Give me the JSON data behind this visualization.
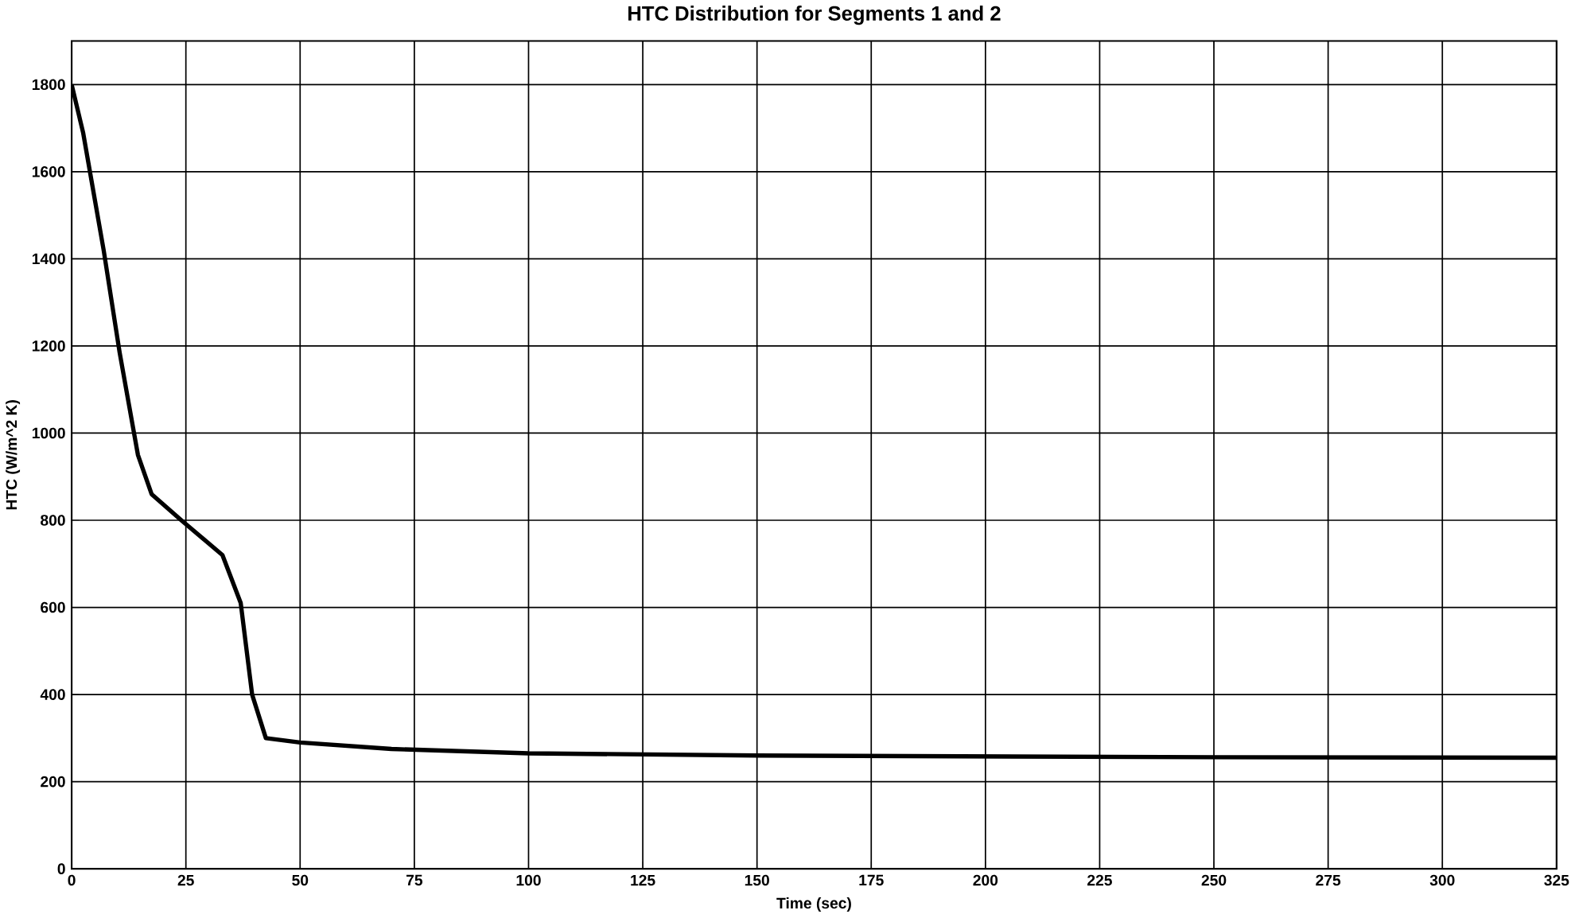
{
  "chart_data": {
    "type": "line",
    "title": "HTC Distribution for Segments 1 and 2",
    "xlabel": "Time (sec)",
    "ylabel": "HTC (W/m^2 K)",
    "x": [
      0,
      2.5,
      7,
      10.5,
      14.5,
      17.5,
      24,
      33,
      37,
      39.5,
      42.5,
      50,
      70,
      100,
      150,
      200,
      250,
      325
    ],
    "series": [
      {
        "color": "#000000",
        "values": [
          1800,
          1690,
          1420,
          1185,
          950,
          860,
          800,
          720,
          610,
          400,
          300,
          290,
          275,
          265,
          260,
          258,
          256,
          255
        ]
      }
    ],
    "xlim": [
      0,
      325
    ],
    "ylim": [
      0,
      1900
    ],
    "xticks": [
      0,
      25,
      50,
      75,
      100,
      125,
      150,
      175,
      200,
      225,
      250,
      275,
      300,
      325
    ],
    "yticks": [
      0,
      200,
      400,
      600,
      800,
      1000,
      1200,
      1400,
      1600,
      1800
    ],
    "grid": true,
    "marker": "none",
    "line_style": "solid"
  }
}
